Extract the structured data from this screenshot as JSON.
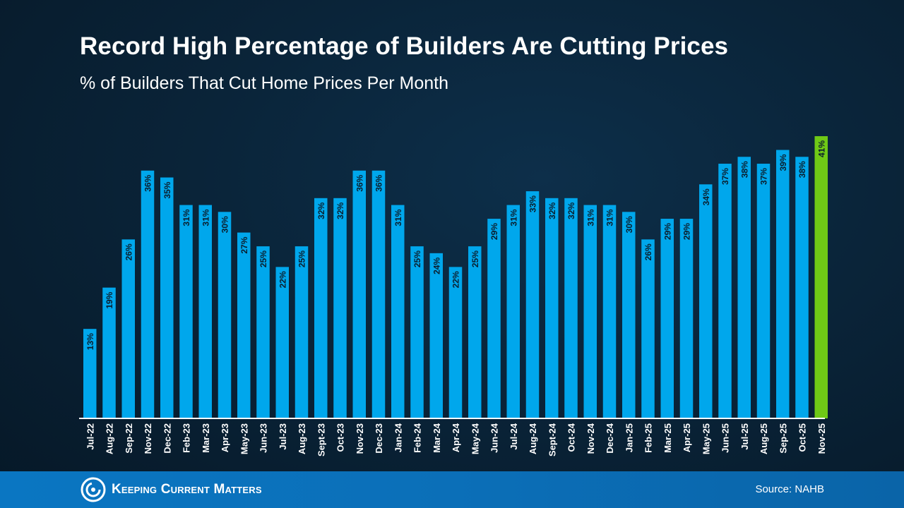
{
  "chart_data": {
    "type": "bar",
    "title": "Record High Percentage of Builders Are Cutting Prices",
    "subtitle": "% of Builders That Cut Home Prices Per Month",
    "categories": [
      "Jul-22",
      "Aug-22",
      "Sep-22",
      "Nov-22",
      "Dec-22",
      "Feb-23",
      "Mar-23",
      "Apr-23",
      "May-23",
      "Jun-23",
      "Jul-23",
      "Aug-23",
      "Sept-23",
      "Oct-23",
      "Nov-23",
      "Dec-23",
      "Jan-24",
      "Feb-24",
      "Mar-24",
      "Apr-24",
      "May-24",
      "Jun-24",
      "Jul-24",
      "Aug-24",
      "Sept-24",
      "Oct-24",
      "Nov-24",
      "Dec-24",
      "Jan-25",
      "Feb-25",
      "Mar-25",
      "Apr-25",
      "May-25",
      "Jun-25",
      "Jul-25",
      "Aug-25",
      "Sep-25",
      "Oct-25",
      "Nov-25"
    ],
    "values": [
      13,
      19,
      26,
      36,
      35,
      31,
      31,
      30,
      27,
      25,
      22,
      25,
      32,
      32,
      36,
      36,
      31,
      25,
      24,
      22,
      25,
      29,
      31,
      33,
      32,
      32,
      31,
      31,
      30,
      26,
      29,
      29,
      34,
      37,
      38,
      37,
      39,
      38,
      41
    ],
    "labels": [
      "13%",
      "19%",
      "26%",
      "36%",
      "35%",
      "31%",
      "31%",
      "30%",
      "27%",
      "25%",
      "22%",
      "25%",
      "32%",
      "32%",
      "36%",
      "36%",
      "31%",
      "25%",
      "24%",
      "22%",
      "25%",
      "29%",
      "31%",
      "33%",
      "32%",
      "32%",
      "31%",
      "31%",
      "30%",
      "26%",
      "29%",
      "29%",
      "34%",
      "37%",
      "38%",
      "37%",
      "39%",
      "38%",
      "41%"
    ],
    "highlight_index": 38,
    "ylim": [
      0,
      42
    ],
    "grid": false,
    "xlabel": "",
    "ylabel": "",
    "colors": {
      "bar": "#00a7ec",
      "highlight": "#6fc916",
      "label": "#0b1d2c",
      "axis": "#ffffff"
    }
  },
  "footer": {
    "brand": "Keeping Current Matters",
    "source": "Source: NAHB",
    "logo_icon": "kcm-swirl-logo"
  }
}
